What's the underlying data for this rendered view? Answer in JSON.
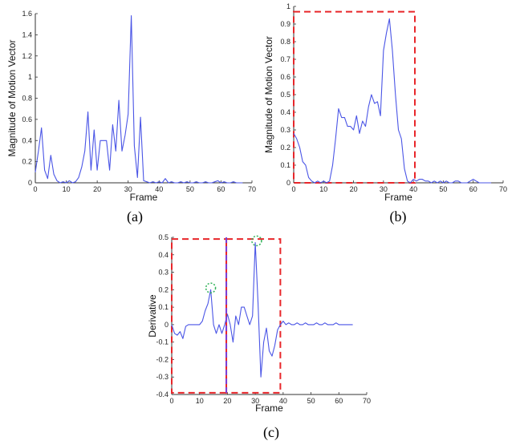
{
  "colors": {
    "series": "#4a55e6",
    "box": "#e8262a",
    "divider": "#7b3fd6",
    "circle": "#33b35a",
    "axis": "#333333"
  },
  "chart_data": [
    {
      "id": "a",
      "type": "line",
      "caption": "(a)",
      "xlabel": "Frame",
      "ylabel": "Magnitude of Motion Vector",
      "xlim": [
        0,
        70
      ],
      "ylim": [
        0,
        1.6
      ],
      "xticks": [
        0,
        10,
        20,
        30,
        40,
        50,
        60,
        70
      ],
      "xtick_labels": [
        "0",
        "10",
        "20",
        "30",
        "40",
        "50",
        "60",
        "70"
      ],
      "yticks": [
        0,
        0.2,
        0.4,
        0.6,
        0.8,
        1,
        1.2,
        1.4,
        1.6
      ],
      "ytick_labels": [
        "0",
        "0.2",
        "0.4",
        "0.6",
        "0.8",
        "1",
        "1.2",
        "1.4",
        "1.6"
      ],
      "x": [
        0,
        1,
        2,
        3,
        4,
        5,
        6,
        7,
        8,
        9,
        10,
        11,
        12,
        13,
        14,
        15,
        16,
        17,
        18,
        19,
        20,
        21,
        22,
        23,
        24,
        25,
        26,
        27,
        28,
        29,
        30,
        31,
        32,
        33,
        34,
        35,
        36,
        37,
        38,
        39,
        40,
        41,
        42,
        43,
        44,
        45,
        46,
        47,
        48,
        49,
        50,
        51,
        52,
        53,
        54,
        55,
        56,
        57,
        58,
        59,
        60,
        61,
        62,
        63,
        64,
        65,
        66,
        67
      ],
      "y": [
        0.1,
        0.3,
        0.52,
        0.12,
        0.04,
        0.26,
        0.08,
        0.02,
        0.0,
        0.01,
        0.0,
        0.02,
        0.0,
        0.01,
        0.05,
        0.15,
        0.3,
        0.67,
        0.12,
        0.5,
        0.12,
        0.4,
        0.4,
        0.4,
        0.12,
        0.55,
        0.3,
        0.78,
        0.3,
        0.45,
        0.65,
        1.58,
        0.35,
        0.05,
        0.62,
        0.02,
        0.01,
        0.0,
        0.01,
        0.0,
        0.01,
        0.0,
        0.04,
        0.0,
        0.01,
        0.0,
        0.0,
        0.01,
        0.0,
        0.01,
        0.0,
        0.0,
        0.01,
        0.0,
        0.0,
        0.01,
        0.0,
        0.0,
        0.01,
        0.02,
        0.0,
        0.01,
        0.0,
        0.0,
        0.01,
        0.0,
        0.0,
        0.0
      ],
      "grid": false
    },
    {
      "id": "b",
      "type": "line",
      "caption": "(b)",
      "xlabel": "Frame",
      "ylabel": "Magnitude of Motion Vector",
      "xlim": [
        0,
        70
      ],
      "ylim": [
        0,
        1.0
      ],
      "xticks": [
        0,
        10,
        20,
        30,
        40,
        50,
        60,
        70
      ],
      "xtick_labels": [
        "0",
        "10",
        "20",
        "30",
        "40",
        "50",
        "60",
        "70"
      ],
      "yticks": [
        0,
        0.1,
        0.2,
        0.3,
        0.4,
        0.5,
        0.6,
        0.7,
        0.8,
        0.9,
        1
      ],
      "ytick_labels": [
        "0",
        "0.1",
        "0.2",
        "0.3",
        "0.4",
        "0.5",
        "0.6",
        "0.7",
        "0.8",
        "0.9",
        "1"
      ],
      "x": [
        0,
        1,
        2,
        3,
        4,
        5,
        6,
        7,
        8,
        9,
        10,
        11,
        12,
        13,
        14,
        15,
        16,
        17,
        18,
        19,
        20,
        21,
        22,
        23,
        24,
        25,
        26,
        27,
        28,
        29,
        30,
        31,
        32,
        33,
        34,
        35,
        36,
        37,
        38,
        39,
        40,
        41,
        42,
        43,
        44,
        45,
        46,
        47,
        48,
        49,
        50,
        51,
        52,
        53,
        54,
        55,
        56,
        57,
        58,
        59,
        60,
        61,
        62,
        63,
        64,
        65,
        66
      ],
      "y": [
        0.28,
        0.25,
        0.2,
        0.12,
        0.1,
        0.03,
        0.01,
        0.0,
        0.01,
        0.0,
        0.01,
        0.0,
        0.01,
        0.1,
        0.25,
        0.42,
        0.37,
        0.37,
        0.32,
        0.32,
        0.3,
        0.38,
        0.28,
        0.35,
        0.32,
        0.43,
        0.5,
        0.45,
        0.46,
        0.38,
        0.75,
        0.85,
        0.93,
        0.75,
        0.5,
        0.3,
        0.25,
        0.08,
        0.01,
        0.0,
        0.02,
        0.01,
        0.02,
        0.02,
        0.01,
        0.01,
        0.0,
        0.01,
        0.0,
        0.01,
        0.0,
        0.01,
        0.0,
        0.0,
        0.01,
        0.01,
        0.0,
        0.0,
        0.0,
        0.01,
        0.02,
        0.01,
        0.0,
        0.0,
        0.0,
        0.0,
        0.0
      ],
      "grid": false,
      "annotations": [
        {
          "kind": "dashed_box",
          "x": [
            0,
            40.5
          ],
          "y": [
            0.0,
            0.97
          ]
        }
      ]
    },
    {
      "id": "c",
      "type": "line",
      "caption": "(c)",
      "xlabel": "Frame",
      "ylabel": "Derivative",
      "xlim": [
        0,
        70
      ],
      "ylim": [
        -0.4,
        0.5
      ],
      "xticks": [
        0,
        10,
        20,
        30,
        40,
        50,
        60,
        70
      ],
      "xtick_labels": [
        "0",
        "10",
        "20",
        "30",
        "40",
        "50",
        "60",
        "70"
      ],
      "yticks": [
        -0.4,
        -0.3,
        -0.2,
        -0.1,
        0,
        0.1,
        0.2,
        0.3,
        0.4,
        0.5
      ],
      "ytick_labels": [
        "-0.4",
        "-0.3",
        "-0.2",
        "-0.1",
        "0",
        "0.1",
        "0.2",
        "0.3",
        "0.4",
        "0.5"
      ],
      "x": [
        0,
        1,
        2,
        3,
        4,
        5,
        6,
        7,
        8,
        9,
        10,
        11,
        12,
        13,
        14,
        15,
        16,
        17,
        18,
        19,
        20,
        21,
        22,
        23,
        24,
        25,
        26,
        27,
        28,
        29,
        30,
        31,
        32,
        33,
        34,
        35,
        36,
        37,
        38,
        39,
        40,
        41,
        42,
        43,
        44,
        45,
        46,
        47,
        48,
        49,
        50,
        51,
        52,
        53,
        54,
        55,
        56,
        57,
        58,
        59,
        60,
        61,
        62,
        63,
        64,
        65
      ],
      "y": [
        0.0,
        -0.05,
        -0.06,
        -0.04,
        -0.08,
        -0.01,
        0.0,
        0.0,
        0.0,
        0.0,
        0.0,
        0.02,
        0.08,
        0.12,
        0.2,
        0.0,
        -0.05,
        0.0,
        -0.05,
        0.0,
        0.06,
        0.0,
        -0.1,
        0.05,
        0.0,
        0.1,
        0.1,
        0.05,
        0.0,
        0.05,
        0.47,
        0.12,
        -0.3,
        -0.1,
        -0.02,
        -0.15,
        -0.18,
        -0.12,
        -0.03,
        0.0,
        0.02,
        0.0,
        0.01,
        0.0,
        0.0,
        0.01,
        0.0,
        0.0,
        0.01,
        0.0,
        0.0,
        0.0,
        0.01,
        0.0,
        0.0,
        0.01,
        0.0,
        0.0,
        0.0,
        0.01,
        0.0,
        0.0,
        0.0,
        0.0,
        0.0,
        0.0
      ],
      "grid": false,
      "annotations": [
        {
          "kind": "dashed_box",
          "x": [
            0,
            19.6
          ],
          "y": [
            -0.39,
            0.49
          ]
        },
        {
          "kind": "dashed_box",
          "x": [
            19.6,
            39
          ],
          "y": [
            -0.39,
            0.49
          ]
        },
        {
          "kind": "divider_line",
          "x": 19.6
        },
        {
          "kind": "circle",
          "x": 14,
          "y": 0.21
        },
        {
          "kind": "circle",
          "x": 30.5,
          "y": 0.48
        }
      ]
    }
  ]
}
